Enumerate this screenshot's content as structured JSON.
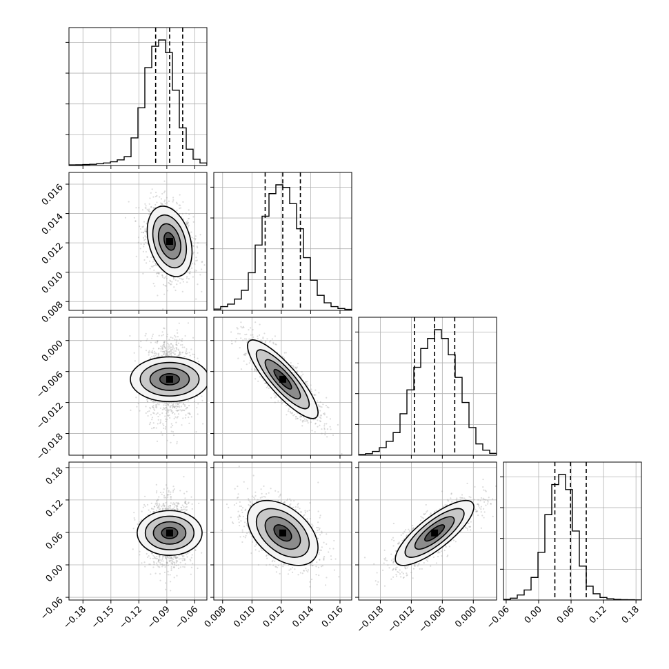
{
  "chart_data": {
    "type": "corner",
    "grid": true,
    "legend": "none",
    "parameters": [
      {
        "range": [
          -0.195,
          -0.047
        ],
        "tick_values": [
          -0.18,
          -0.15,
          -0.12,
          -0.09,
          -0.06
        ],
        "tick_labels": [
          "−0.18",
          "−0.15",
          "−0.12",
          "−0.09",
          "−0.06"
        ],
        "quantiles": [
          -0.102,
          -0.087,
          -0.073
        ],
        "median": -0.087,
        "std": 0.012,
        "hist_counts": [
          0.005,
          0.006,
          0.008,
          0.01,
          0.014,
          0.02,
          0.03,
          0.045,
          0.07,
          0.22,
          0.46,
          0.78,
          0.95,
          1.0,
          0.9,
          0.6,
          0.3,
          0.13,
          0.05,
          0.02
        ]
      },
      {
        "range": [
          0.0074,
          0.0168
        ],
        "tick_values": [
          0.008,
          0.01,
          0.012,
          0.014,
          0.016
        ],
        "tick_labels": [
          "0.008",
          "0.010",
          "0.012",
          "0.014",
          "0.016"
        ],
        "quantiles": [
          0.0109,
          0.0121,
          0.0133
        ],
        "median": 0.0121,
        "std": 0.0012,
        "hist_counts": [
          0.01,
          0.03,
          0.05,
          0.09,
          0.16,
          0.3,
          0.52,
          0.75,
          0.93,
          1.0,
          0.98,
          0.85,
          0.65,
          0.42,
          0.24,
          0.12,
          0.06,
          0.03,
          0.015,
          0.008
        ]
      },
      {
        "range": [
          -0.0222,
          0.0045
        ],
        "tick_values": [
          -0.018,
          -0.012,
          -0.006,
          0.0
        ],
        "tick_labels": [
          "−0.018",
          "−0.012",
          "−0.006",
          "0.000"
        ],
        "quantiles": [
          -0.0114,
          -0.0075,
          -0.0036
        ],
        "median": -0.0075,
        "std": 0.0038,
        "hist_counts": [
          0.005,
          0.012,
          0.03,
          0.06,
          0.11,
          0.18,
          0.33,
          0.52,
          0.7,
          0.85,
          0.93,
          1.0,
          0.93,
          0.8,
          0.62,
          0.42,
          0.22,
          0.09,
          0.04,
          0.015
        ]
      },
      {
        "range": [
          -0.065,
          0.19
        ],
        "tick_values": [
          -0.06,
          0.0,
          0.06,
          0.12,
          0.18
        ],
        "tick_labels": [
          "−0.06",
          "0.00",
          "0.06",
          "0.12",
          "0.18"
        ],
        "quantiles": [
          0.03,
          0.059,
          0.088
        ],
        "median": 0.059,
        "std": 0.03,
        "hist_counts": [
          0.005,
          0.015,
          0.04,
          0.08,
          0.18,
          0.38,
          0.68,
          0.92,
          1.0,
          0.88,
          0.55,
          0.27,
          0.11,
          0.05,
          0.02,
          0.01,
          0.005,
          0.003,
          0.002,
          0.001
        ]
      }
    ],
    "correlations": {
      "1-0": -0.3,
      "2-0": 0.0,
      "2-1": -0.85,
      "3-0": 0.0,
      "3-1": -0.45,
      "3-2": 0.8
    },
    "contour_sigma_levels": [
      0.5,
      1.0,
      1.5,
      2.0
    ]
  }
}
